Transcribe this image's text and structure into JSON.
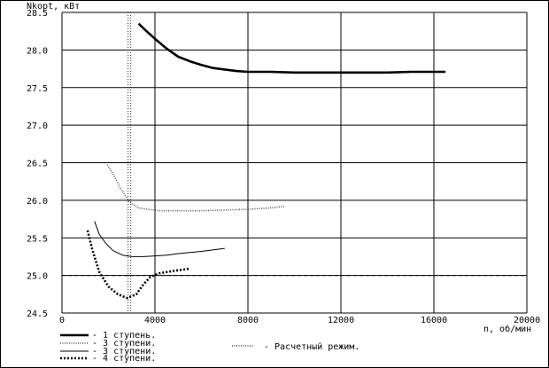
{
  "chart_data": {
    "type": "line",
    "ylabel": "Nkopt, кВт",
    "xlabel": "n, об/мин",
    "xlim": [
      0,
      20000
    ],
    "ylim": [
      24.5,
      28.5
    ],
    "x_ticks": [
      0,
      4000,
      8000,
      12000,
      16000,
      20000
    ],
    "x_tick_labels": [
      "0",
      "4000",
      "8000",
      "12000",
      "16000",
      "20000"
    ],
    "y_ticks": [
      24.5,
      25.0,
      25.5,
      26.0,
      26.5,
      27.0,
      27.5,
      28.0,
      28.5
    ],
    "y_tick_labels": [
      "24.5",
      "25.0",
      "25.5",
      "26.0",
      "26.5",
      "27.0",
      "27.5",
      "28.0",
      "28.5"
    ],
    "grid": true,
    "reference_line": {
      "y": 25.0,
      "style": "dashed"
    },
    "design_mode": {
      "x": 2900,
      "label": "-  Расчетный режим."
    },
    "legend_position": "bottom-left",
    "series": [
      {
        "name": "- 1 ступень.",
        "style": "thick-solid",
        "x": [
          3300,
          3600,
          4000,
          4500,
          5000,
          5500,
          6000,
          6500,
          7000,
          7500,
          8000,
          9000,
          10000,
          11000,
          12000,
          13000,
          14000,
          15000,
          16000,
          16500
        ],
        "y": [
          28.35,
          28.26,
          28.15,
          28.02,
          27.91,
          27.85,
          27.8,
          27.76,
          27.74,
          27.72,
          27.71,
          27.71,
          27.7,
          27.7,
          27.7,
          27.7,
          27.7,
          27.71,
          27.71,
          27.71
        ]
      },
      {
        "name": "- 3 ступени.",
        "style": "dotted-gray",
        "x": [
          1900,
          2200,
          2500,
          2900,
          3300,
          3700,
          4200,
          5000,
          6000,
          7000,
          8000,
          9000,
          9600
        ],
        "y": [
          26.5,
          26.35,
          26.17,
          25.98,
          25.9,
          25.88,
          25.86,
          25.86,
          25.86,
          25.87,
          25.88,
          25.9,
          25.92
        ]
      },
      {
        "name": "- 3 ступени.",
        "style": "thin-solid",
        "x": [
          1400,
          1600,
          1900,
          2200,
          2600,
          3000,
          3500,
          4000,
          4500,
          5000,
          6000,
          7000
        ],
        "y": [
          25.72,
          25.55,
          25.42,
          25.33,
          25.27,
          25.25,
          25.25,
          25.26,
          25.27,
          25.29,
          25.32,
          25.36
        ]
      },
      {
        "name": "- 4 ступени.",
        "style": "heavy-dotted",
        "x": [
          1100,
          1300,
          1600,
          2000,
          2400,
          2800,
          3200,
          3500,
          3800,
          4200,
          4800,
          5500
        ],
        "y": [
          25.6,
          25.35,
          25.05,
          24.85,
          24.75,
          24.7,
          24.75,
          24.88,
          24.98,
          25.03,
          25.06,
          25.09
        ]
      }
    ]
  }
}
